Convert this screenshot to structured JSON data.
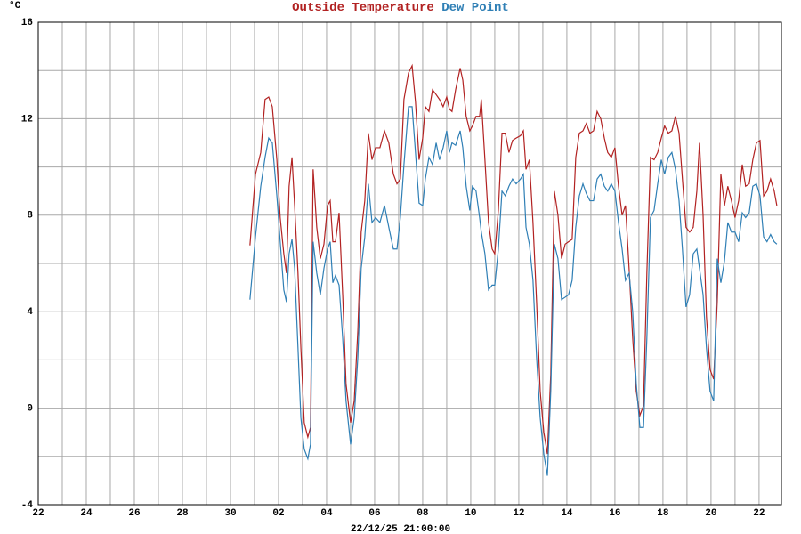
{
  "chart_data": {
    "type": "line",
    "y_label": "°C",
    "x_label": "22/12/25 21:00:00",
    "xlim": [
      0,
      30.93
    ],
    "ylim": [
      -4,
      16
    ],
    "yticks": [
      -4,
      0,
      4,
      8,
      12,
      16
    ],
    "yminor": [
      -2,
      2,
      6,
      10,
      14
    ],
    "xticks": [
      {
        "value": 0,
        "label": "22"
      },
      {
        "value": 2,
        "label": "24"
      },
      {
        "value": 4,
        "label": "26"
      },
      {
        "value": 6,
        "label": "28"
      },
      {
        "value": 8,
        "label": "30"
      },
      {
        "value": 10,
        "label": "02"
      },
      {
        "value": 12,
        "label": "04"
      },
      {
        "value": 14,
        "label": "06"
      },
      {
        "value": 16,
        "label": "08"
      },
      {
        "value": 18,
        "label": "10"
      },
      {
        "value": 20,
        "label": "12"
      },
      {
        "value": 22,
        "label": "14"
      },
      {
        "value": 24,
        "label": "16"
      },
      {
        "value": 26,
        "label": "18"
      },
      {
        "value": 28,
        "label": "20"
      },
      {
        "value": 30,
        "label": "22"
      }
    ],
    "xminor": [
      1,
      3,
      5,
      7,
      9,
      11,
      13,
      15,
      17,
      19,
      21,
      23,
      25,
      27,
      29
    ],
    "grid": true,
    "x": [
      8.81,
      9.04,
      9.26,
      9.44,
      9.59,
      9.74,
      9.93,
      10.07,
      10.22,
      10.33,
      10.44,
      10.56,
      10.67,
      10.81,
      10.93,
      11.07,
      11.22,
      11.33,
      11.44,
      11.59,
      11.74,
      11.89,
      12.04,
      12.15,
      12.26,
      12.37,
      12.52,
      12.67,
      12.81,
      13.0,
      13.15,
      13.3,
      13.44,
      13.59,
      13.74,
      13.89,
      14.04,
      14.22,
      14.41,
      14.59,
      14.78,
      14.93,
      15.07,
      15.22,
      15.41,
      15.56,
      15.7,
      15.85,
      16.0,
      16.11,
      16.26,
      16.41,
      16.56,
      16.7,
      16.85,
      17.0,
      17.11,
      17.22,
      17.37,
      17.56,
      17.67,
      17.81,
      17.96,
      18.07,
      18.22,
      18.37,
      18.44,
      18.59,
      18.74,
      18.89,
      19.0,
      19.15,
      19.3,
      19.44,
      19.59,
      19.74,
      19.89,
      20.07,
      20.19,
      20.3,
      20.44,
      20.59,
      20.74,
      20.89,
      21.04,
      21.19,
      21.33,
      21.48,
      21.63,
      21.78,
      21.93,
      22.07,
      22.22,
      22.37,
      22.52,
      22.67,
      22.81,
      22.96,
      23.11,
      23.26,
      23.41,
      23.56,
      23.7,
      23.85,
      24.0,
      24.15,
      24.3,
      24.44,
      24.59,
      24.74,
      24.89,
      25.04,
      25.19,
      25.33,
      25.48,
      25.63,
      25.78,
      25.93,
      26.07,
      26.22,
      26.37,
      26.52,
      26.67,
      26.81,
      26.96,
      27.11,
      27.26,
      27.41,
      27.52,
      27.67,
      27.81,
      27.96,
      28.11,
      28.26,
      28.41,
      28.56,
      28.7,
      28.85,
      29.0,
      29.15,
      29.3,
      29.44,
      29.59,
      29.74,
      29.89,
      30.04,
      30.19,
      30.33,
      30.48,
      30.63,
      30.74
    ],
    "series": [
      {
        "name": "Outside Temperature",
        "color": "#b22222",
        "values": [
          6.75,
          9.7,
          10.6,
          12.8,
          12.9,
          12.5,
          10.3,
          7.9,
          6.4,
          5.6,
          9.2,
          10.4,
          8.4,
          5.6,
          2.5,
          -0.6,
          -1.2,
          -0.8,
          9.9,
          7.5,
          6.2,
          6.8,
          8.4,
          8.6,
          6.9,
          6.9,
          8.1,
          4.7,
          1.0,
          -0.6,
          0.3,
          3.2,
          7.3,
          8.6,
          11.4,
          10.3,
          10.8,
          10.8,
          11.5,
          11.0,
          9.7,
          9.3,
          9.5,
          12.8,
          13.9,
          14.2,
          12.7,
          10.3,
          11.2,
          12.5,
          12.3,
          13.2,
          13.0,
          12.8,
          12.5,
          12.9,
          12.4,
          12.3,
          13.2,
          14.1,
          13.6,
          12.1,
          11.5,
          11.7,
          12.1,
          12.1,
          12.8,
          10.3,
          7.7,
          6.6,
          6.4,
          8.2,
          11.4,
          11.4,
          10.6,
          11.1,
          11.2,
          11.3,
          11.5,
          9.9,
          10.3,
          7.7,
          4.4,
          0.7,
          -1.0,
          -1.9,
          1.4,
          9.0,
          8.0,
          6.2,
          6.8,
          6.9,
          7.0,
          10.4,
          11.4,
          11.5,
          11.8,
          11.4,
          11.5,
          12.3,
          12.0,
          11.2,
          10.6,
          10.4,
          10.8,
          9.2,
          8.0,
          8.4,
          5.8,
          2.9,
          0.7,
          -0.3,
          0.1,
          5.6,
          10.4,
          10.3,
          10.6,
          11.2,
          11.7,
          11.4,
          11.5,
          12.1,
          11.4,
          9.5,
          7.5,
          7.3,
          7.5,
          9.0,
          11.0,
          8.0,
          3.8,
          1.6,
          1.2,
          4.4,
          9.7,
          8.4,
          9.2,
          8.6,
          7.9,
          8.6,
          10.1,
          9.2,
          9.3,
          10.3,
          11.0,
          11.1,
          8.8,
          9.0,
          9.5,
          9.0,
          8.4
        ]
      },
      {
        "name": "Dew Point",
        "color": "#2f7fb5",
        "values": [
          4.5,
          7.1,
          9.2,
          10.4,
          11.2,
          11.0,
          8.8,
          6.9,
          4.9,
          4.4,
          6.4,
          7.0,
          5.8,
          2.5,
          -0.4,
          -1.7,
          -2.1,
          -1.5,
          6.9,
          5.6,
          4.7,
          5.8,
          6.6,
          6.9,
          5.2,
          5.5,
          5.1,
          2.9,
          0.3,
          -1.5,
          -0.4,
          2.1,
          5.8,
          7.1,
          9.3,
          7.7,
          7.9,
          7.7,
          8.4,
          7.5,
          6.6,
          6.6,
          7.9,
          10.1,
          12.5,
          12.5,
          10.6,
          8.5,
          8.4,
          9.5,
          10.4,
          10.1,
          11.0,
          10.3,
          10.8,
          11.5,
          10.6,
          11.0,
          10.9,
          11.5,
          10.8,
          9.2,
          8.2,
          9.2,
          9.0,
          7.9,
          7.3,
          6.4,
          4.9,
          5.1,
          5.1,
          6.6,
          9.0,
          8.8,
          9.2,
          9.5,
          9.3,
          9.5,
          9.7,
          7.5,
          6.8,
          5.3,
          2.1,
          -0.4,
          -1.9,
          -2.8,
          0.7,
          6.8,
          6.2,
          4.5,
          4.6,
          4.7,
          5.3,
          7.5,
          8.8,
          9.3,
          8.9,
          8.6,
          8.6,
          9.5,
          9.7,
          9.2,
          9.0,
          9.3,
          9.0,
          7.7,
          6.6,
          5.3,
          5.6,
          4.0,
          1.0,
          -0.8,
          -0.8,
          2.9,
          7.9,
          8.2,
          9.3,
          10.3,
          9.7,
          10.4,
          10.6,
          9.9,
          8.6,
          6.6,
          4.2,
          4.7,
          6.4,
          6.6,
          5.8,
          4.7,
          2.5,
          0.7,
          0.3,
          6.2,
          5.2,
          6.1,
          7.7,
          7.3,
          7.3,
          6.9,
          8.1,
          7.9,
          8.1,
          9.2,
          9.3,
          8.8,
          7.1,
          6.9,
          7.2,
          6.9,
          6.8
        ]
      }
    ]
  }
}
